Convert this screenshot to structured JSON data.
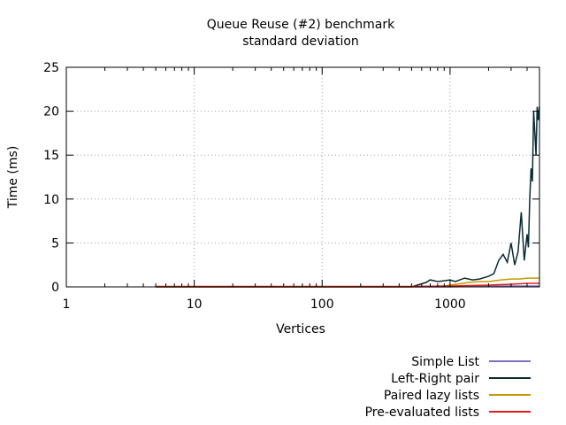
{
  "chart_data": {
    "type": "line",
    "title": "Queue Reuse (#2) benchmark",
    "subtitle": "standard deviation",
    "xlabel": "Vertices",
    "ylabel": "Time (ms)",
    "x_scale": "log",
    "xlim": [
      1,
      5000
    ],
    "ylim": [
      0,
      25
    ],
    "x_ticks": [
      1,
      10,
      100,
      1000
    ],
    "x_tick_labels": [
      "1",
      "10",
      "100",
      "1000"
    ],
    "y_ticks": [
      0,
      5,
      10,
      15,
      20,
      25
    ],
    "y_tick_labels": [
      "0",
      "5",
      "10",
      "15",
      "20",
      "25"
    ],
    "grid": true,
    "legend_position": "bottom-right",
    "series": [
      {
        "name": "Simple List",
        "color": "#7b71c6",
        "x": [
          5,
          50,
          500,
          1000,
          2000,
          3000,
          4000,
          5000
        ],
        "values": [
          0,
          0,
          0,
          0,
          0.1,
          0.1,
          0.1,
          0.1
        ]
      },
      {
        "name": "Left-Right pair",
        "color": "#0a2a35",
        "x": [
          5,
          50,
          500,
          650,
          700,
          800,
          900,
          1000,
          1100,
          1300,
          1500,
          1700,
          2000,
          2200,
          2400,
          2600,
          2800,
          3000,
          3200,
          3400,
          3600,
          3800,
          4000,
          4100,
          4200,
          4300,
          4400,
          4500,
          4600,
          4700,
          4800,
          4900,
          5000
        ],
        "values": [
          0,
          0,
          0,
          0.5,
          0.8,
          0.6,
          0.7,
          0.8,
          0.6,
          1.0,
          0.8,
          0.9,
          1.2,
          1.5,
          3.0,
          3.7,
          2.8,
          5.0,
          2.5,
          4.0,
          8.5,
          3.0,
          6.0,
          4.5,
          10.0,
          13.5,
          12.0,
          20.0,
          17.5,
          15.0,
          20.5,
          19.0,
          20.5
        ]
      },
      {
        "name": "Paired lazy lists",
        "color": "#c49a00",
        "x": [
          5,
          50,
          500,
          900,
          1000,
          1400,
          1700,
          2000,
          2500,
          3000,
          3500,
          4000,
          4500,
          5000
        ],
        "values": [
          0,
          0,
          0,
          0.1,
          0.2,
          0.5,
          0.6,
          0.6,
          0.8,
          0.9,
          0.9,
          1.0,
          1.0,
          1.0
        ]
      },
      {
        "name": "Pre-evaluated lists",
        "color": "#e0201e",
        "x": [
          5,
          50,
          500,
          1000,
          2000,
          3000,
          4000,
          5000
        ],
        "values": [
          0.05,
          0.05,
          0.05,
          0.1,
          0.2,
          0.3,
          0.4,
          0.4
        ]
      }
    ]
  }
}
